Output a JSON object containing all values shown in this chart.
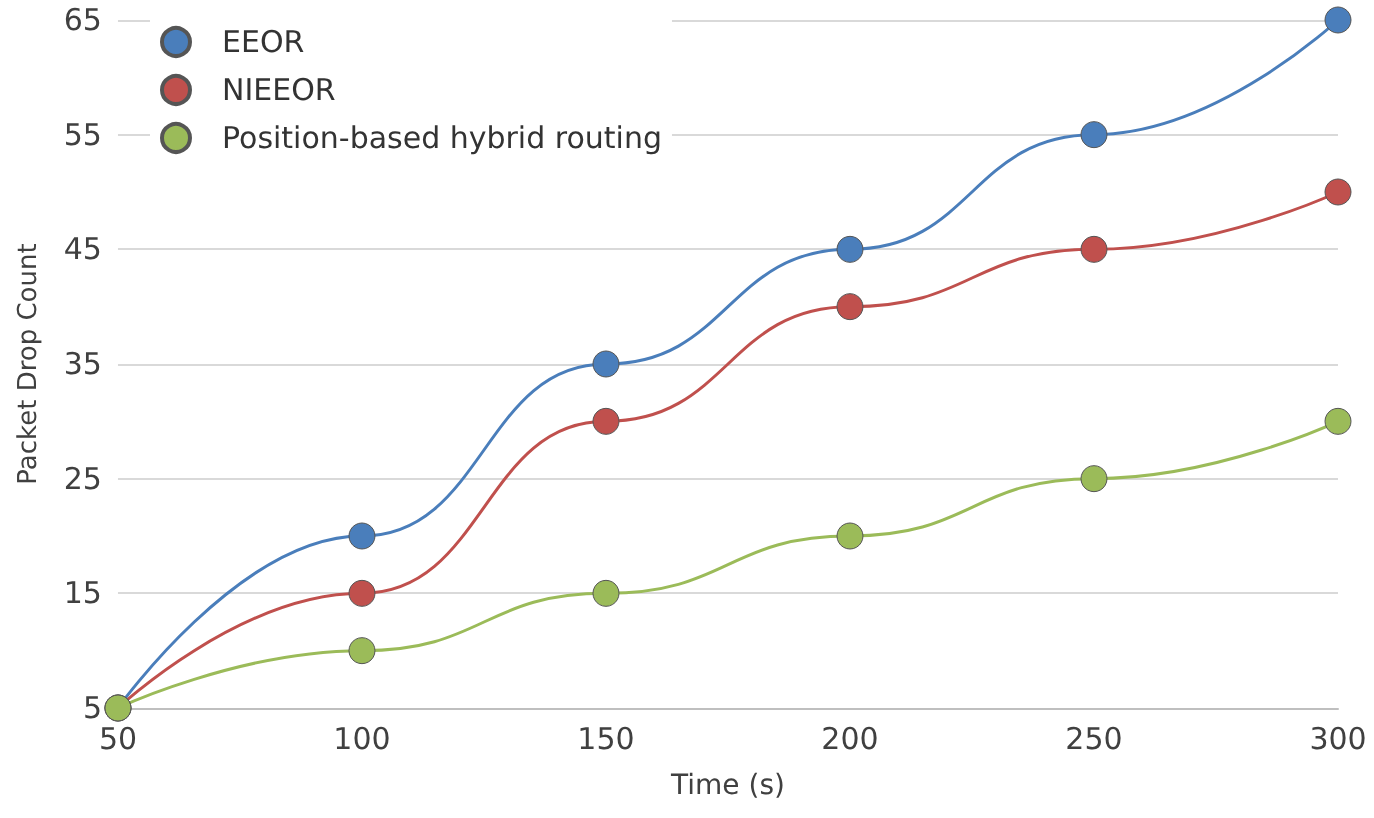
{
  "chart_data": {
    "type": "line",
    "xlabel": "Time (s)",
    "ylabel": "Packet Drop Count",
    "x": [
      50,
      100,
      150,
      200,
      250,
      300
    ],
    "series": [
      {
        "name": "EEOR",
        "color": "#4a7ebb",
        "values": [
          5,
          20,
          35,
          45,
          55,
          65
        ]
      },
      {
        "name": "NIEEOR",
        "color": "#c0504d",
        "values": [
          5,
          15,
          30,
          40,
          45,
          50
        ]
      },
      {
        "name": "Position-based hybrid routing",
        "color": "#9bbb59",
        "values": [
          5,
          10,
          15,
          20,
          25,
          30
        ]
      }
    ],
    "xlim": [
      50,
      300
    ],
    "xticks": [
      50,
      100,
      150,
      200,
      250,
      300
    ],
    "ylim": [
      5,
      65
    ],
    "yticks": [
      5,
      15,
      25,
      35,
      45,
      55,
      65
    ],
    "grid": "y",
    "legend": "top left",
    "marker": "circle",
    "line_style": "solid"
  }
}
